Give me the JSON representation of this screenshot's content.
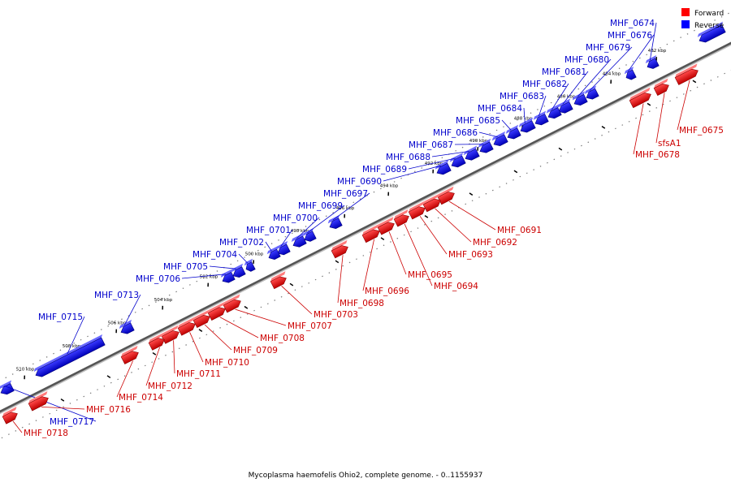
{
  "caption": "Mycoplasma haemofelis Ohio2, complete genome. - 0..1155937",
  "legend": [
    {
      "label": "Forward",
      "color": "#ff0000"
    },
    {
      "label": "Reverse",
      "color": "#0000ff"
    }
  ],
  "colors": {
    "forward": "#ee0000",
    "reverse": "#1010ee",
    "axis": "#555555",
    "leader_fwd": "#cc0000",
    "leader_rev": "#0000cc"
  },
  "axis_ticks": [
    "482 kbp",
    "484 kbp",
    "486 kbp",
    "488 kbp",
    "490 kbp",
    "492 kbp",
    "494 kbp",
    "496 kbp",
    "498 kbp",
    "500 kbp",
    "502 kbp",
    "504 kbp",
    "506 kbp",
    "508 kbp",
    "510 kbp"
  ],
  "forward_genes": [
    "MHF_0675",
    "sfsA1",
    "MHF_0678",
    "MHF_0691",
    "MHF_0692",
    "MHF_0693",
    "MHF_0694",
    "MHF_0695",
    "MHF_0696",
    "MHF_0698",
    "MHF_0703",
    "MHF_0707",
    "MHF_0708",
    "MHF_0709",
    "MHF_0710",
    "MHF_0711",
    "MHF_0712",
    "MHF_0714",
    "MHF_0716",
    "MHF_0718"
  ],
  "reverse_genes": [
    "MHF_0674",
    "MHF_0676",
    "MHF_0679",
    "MHF_0680",
    "MHF_0681",
    "MHF_0682",
    "MHF_0683",
    "MHF_0684",
    "MHF_0685",
    "MHF_0686",
    "MHF_0687",
    "MHF_0688",
    "MHF_0689",
    "MHF_0690",
    "MHF_0697",
    "MHF_0699",
    "MHF_0700",
    "MHF_0701",
    "MHF_0702",
    "MHF_0704",
    "MHF_0705",
    "MHF_0706",
    "MHF_0713",
    "MHF_0715",
    "MHF_0717"
  ]
}
